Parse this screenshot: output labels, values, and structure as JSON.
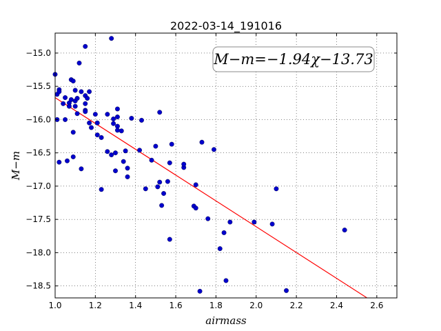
{
  "chart_data": {
    "type": "scatter",
    "title": "2022-03-14_191016",
    "xlabel": "airmass",
    "ylabel": "M−m",
    "xlim": [
      1.0,
      2.7
    ],
    "ylim": [
      -18.68,
      -14.7
    ],
    "y_inverted": true,
    "grid": true,
    "grid_style": "dotted",
    "xticks": [
      1.0,
      1.2,
      1.4,
      1.6,
      1.8,
      2.0,
      2.2,
      2.4,
      2.6
    ],
    "xtick_labels": [
      "1.0",
      "1.2",
      "1.4",
      "1.6",
      "1.8",
      "2.0",
      "2.2",
      "2.4",
      "2.6"
    ],
    "yticks": [
      -15.0,
      -15.5,
      -16.0,
      -16.5,
      -17.0,
      -17.5,
      -18.0,
      -18.5
    ],
    "ytick_labels": [
      "−15.0",
      "−15.5",
      "−16.0",
      "−16.5",
      "−17.0",
      "−17.5",
      "−18.0",
      "−18.5"
    ],
    "annotation": "M−m=−1.94χ−13.73",
    "annotation_placement": "top-right",
    "point_color": "#0000cc",
    "fit_color": "#ff0000",
    "fit": {
      "slope": -1.94,
      "intercept": -13.73,
      "x_range": [
        1.0,
        2.55
      ]
    },
    "points": [
      [
        1.0,
        -15.32
      ],
      [
        1.01,
        -15.62
      ],
      [
        1.02,
        -15.55
      ],
      [
        1.02,
        -15.58
      ],
      [
        1.01,
        -16.0
      ],
      [
        1.02,
        -16.64
      ],
      [
        1.04,
        -15.76
      ],
      [
        1.05,
        -15.67
      ],
      [
        1.05,
        -16.0
      ],
      [
        1.06,
        -16.62
      ],
      [
        1.07,
        -15.75
      ],
      [
        1.07,
        -15.8
      ],
      [
        1.08,
        -15.7
      ],
      [
        1.08,
        -15.4
      ],
      [
        1.09,
        -15.42
      ],
      [
        1.09,
        -16.56
      ],
      [
        1.09,
        -16.19
      ],
      [
        1.1,
        -15.56
      ],
      [
        1.1,
        -15.72
      ],
      [
        1.1,
        -15.8
      ],
      [
        1.11,
        -15.68
      ],
      [
        1.11,
        -15.91
      ],
      [
        1.12,
        -15.15
      ],
      [
        1.13,
        -15.58
      ],
      [
        1.13,
        -16.74
      ],
      [
        1.15,
        -15.64
      ],
      [
        1.15,
        -15.76
      ],
      [
        1.15,
        -15.86
      ],
      [
        1.15,
        -15.88
      ],
      [
        1.15,
        -14.9
      ],
      [
        1.16,
        -15.68
      ],
      [
        1.17,
        -15.58
      ],
      [
        1.17,
        -16.05
      ],
      [
        1.18,
        -16.12
      ],
      [
        1.2,
        -15.92
      ],
      [
        1.21,
        -16.05
      ],
      [
        1.21,
        -16.23
      ],
      [
        1.23,
        -16.27
      ],
      [
        1.23,
        -17.05
      ],
      [
        1.26,
        -15.92
      ],
      [
        1.26,
        -16.48
      ],
      [
        1.28,
        -14.78
      ],
      [
        1.28,
        -16.53
      ],
      [
        1.29,
        -16.06
      ],
      [
        1.29,
        -15.99
      ],
      [
        1.3,
        -16.5
      ],
      [
        1.3,
        -16.77
      ],
      [
        1.31,
        -15.84
      ],
      [
        1.31,
        -15.96
      ],
      [
        1.31,
        -16.1
      ],
      [
        1.31,
        -16.16
      ],
      [
        1.33,
        -16.17
      ],
      [
        1.34,
        -16.63
      ],
      [
        1.35,
        -16.47
      ],
      [
        1.36,
        -16.73
      ],
      [
        1.36,
        -16.86
      ],
      [
        1.38,
        -15.98
      ],
      [
        1.42,
        -16.46
      ],
      [
        1.43,
        -16.01
      ],
      [
        1.45,
        -17.04
      ],
      [
        1.48,
        -16.61
      ],
      [
        1.5,
        -16.4
      ],
      [
        1.51,
        -17.01
      ],
      [
        1.52,
        -15.89
      ],
      [
        1.52,
        -16.94
      ],
      [
        1.53,
        -17.29
      ],
      [
        1.54,
        -17.11
      ],
      [
        1.56,
        -16.93
      ],
      [
        1.57,
        -16.65
      ],
      [
        1.57,
        -17.8
      ],
      [
        1.58,
        -16.37
      ],
      [
        1.64,
        -16.72
      ],
      [
        1.64,
        -16.67
      ],
      [
        1.69,
        -17.3
      ],
      [
        1.7,
        -16.98
      ],
      [
        1.7,
        -17.33
      ],
      [
        1.72,
        -18.58
      ],
      [
        1.73,
        -16.34
      ],
      [
        1.76,
        -17.49
      ],
      [
        1.79,
        -16.45
      ],
      [
        1.82,
        -17.94
      ],
      [
        1.84,
        -17.7
      ],
      [
        1.85,
        -18.42
      ],
      [
        1.87,
        -17.54
      ],
      [
        1.99,
        -17.54
      ],
      [
        2.08,
        -17.57
      ],
      [
        2.1,
        -17.04
      ],
      [
        2.15,
        -18.57
      ],
      [
        2.44,
        -17.66
      ]
    ]
  }
}
